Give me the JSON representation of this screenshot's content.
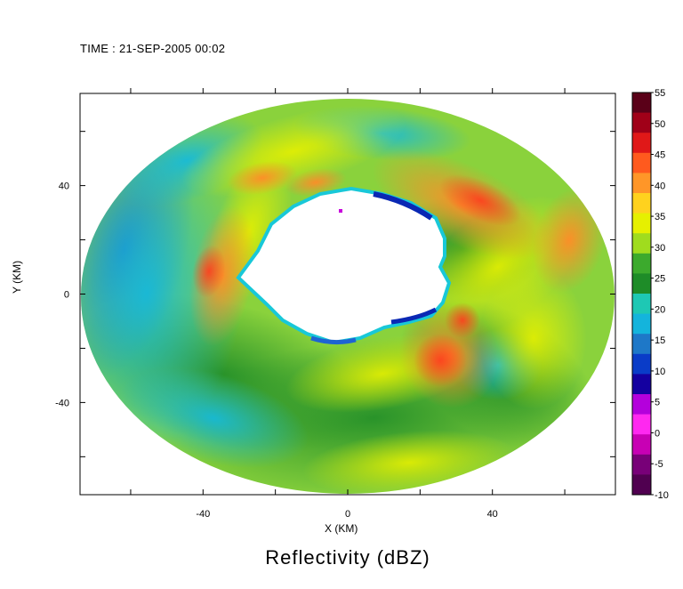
{
  "header": {
    "time_label": "TIME : 21-SEP-2005 00:02"
  },
  "chart_data": {
    "type": "heatmap",
    "title": "Reflectivity (dBZ)",
    "xlabel": "X (KM)",
    "ylabel": "Y (KM)",
    "xlim": [
      -74,
      74
    ],
    "ylim": [
      -74,
      74
    ],
    "x_ticks": [
      -40,
      0,
      40
    ],
    "y_ticks": [
      -40,
      0,
      40
    ],
    "colorbar": {
      "min": -10,
      "max": 55,
      "ticks": [
        55,
        50,
        45,
        40,
        35,
        30,
        25,
        20,
        15,
        10,
        5,
        0,
        -5,
        -10
      ],
      "colors": [
        "#5a0018",
        "#a00018",
        "#e01818",
        "#ff5a1e",
        "#ff9628",
        "#ffd21e",
        "#e6f000",
        "#a0dc1e",
        "#3caa2d",
        "#1e8c28",
        "#1ec8b4",
        "#14b4dc",
        "#1e78c8",
        "#0a3cc8",
        "#1400a0",
        "#b400dc",
        "#ff28f0",
        "#c800b4",
        "#780078",
        "#500050"
      ]
    },
    "field_description": "annular radar reflectivity field with hurricane eyewall; data ring between inner radius ~28 km and outer radius ~74 km; eye (no data) in center"
  }
}
